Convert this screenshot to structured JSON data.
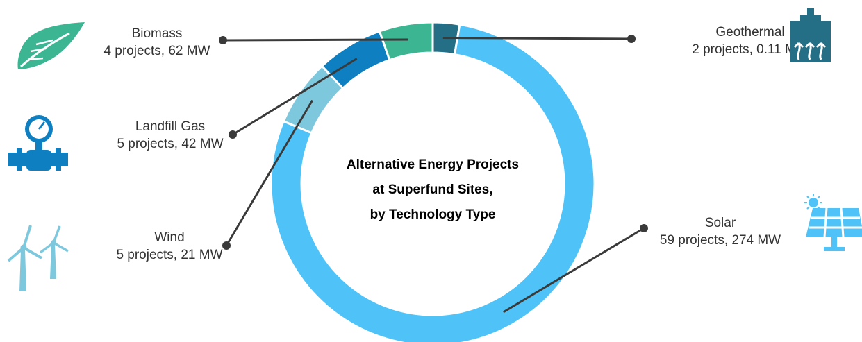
{
  "chart_data": {
    "type": "pie",
    "title": "Alternative Energy Projects at Superfund Sites, by Technology Type",
    "title_lines": [
      "Alternative Energy Projects",
      "at Superfund Sites,",
      "by Technology Type"
    ],
    "unit": "projects",
    "slices": [
      {
        "name": "Solar",
        "detail": "59 projects, 274 MW",
        "projects": 59,
        "mw": 274,
        "color": "#4fc3f7",
        "icon": "solar-panel-icon"
      },
      {
        "name": "Wind",
        "detail": "5 projects, 21 MW",
        "projects": 5,
        "mw": 21,
        "color": "#7ec8de",
        "icon": "wind-turbine-icon"
      },
      {
        "name": "Landfill Gas",
        "detail": "5 projects, 42 MW",
        "projects": 5,
        "mw": 42,
        "color": "#0e7fc0",
        "icon": "gas-pipe-gauge-icon"
      },
      {
        "name": "Biomass",
        "detail": "4 projects, 62 MW",
        "projects": 4,
        "mw": 62,
        "color": "#3bb592",
        "icon": "leaf-icon"
      },
      {
        "name": "Geothermal",
        "detail": "2 projects, 0.11 MW",
        "projects": 2,
        "mw": 0.11,
        "color": "#246e86",
        "icon": "geothermal-plant-icon"
      }
    ]
  }
}
